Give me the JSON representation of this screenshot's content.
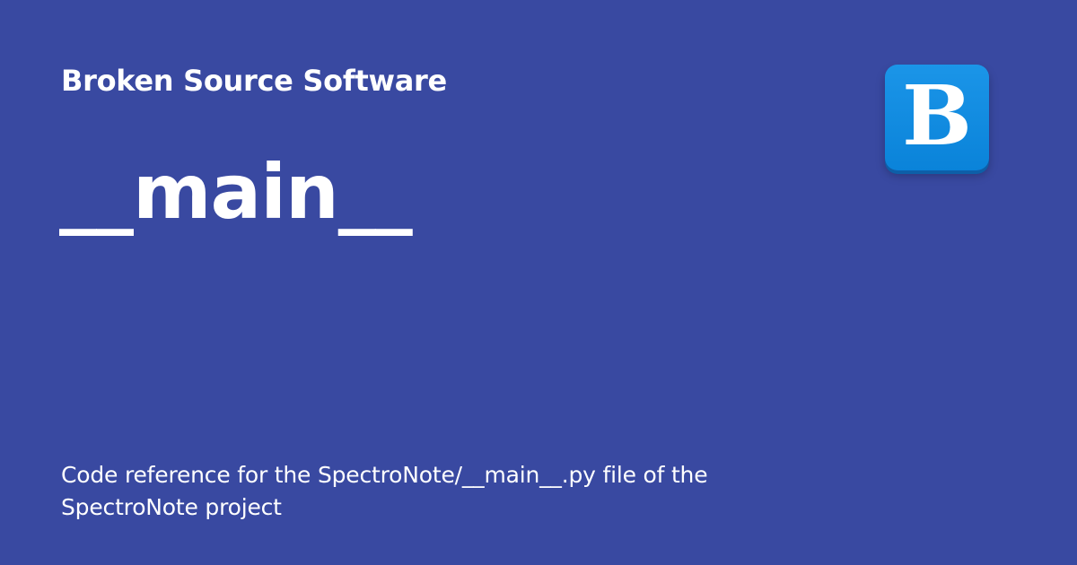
{
  "card": {
    "site_name": "Broken Source Software",
    "title": "__main__",
    "description": "Code reference for the SpectroNote/__main__.py file of the SpectroNote project"
  },
  "logo": {
    "letter": "B",
    "icon": "broken-source-logo",
    "color": "#0a83d9"
  },
  "colors": {
    "background": "#3949a1",
    "text": "#ffffff"
  }
}
